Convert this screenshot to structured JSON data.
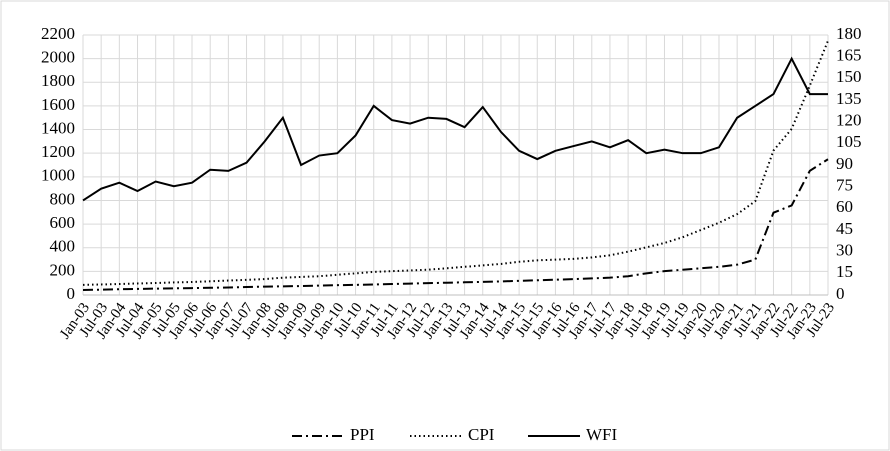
{
  "chart_data": {
    "type": "line",
    "categories": [
      "Jan-03",
      "Jul-03",
      "Jan-04",
      "Jul-04",
      "Jan-05",
      "Jul-05",
      "Jan-06",
      "Jul-06",
      "Jan-07",
      "Jul-07",
      "Jan-08",
      "Jul-08",
      "Jan-09",
      "Jul-09",
      "Jan-10",
      "Jul-10",
      "Jan-11",
      "Jul-11",
      "Jan-12",
      "Jul-12",
      "Jan-13",
      "Jul-13",
      "Jan-14",
      "Jul-14",
      "Jan-15",
      "Jul-15",
      "Jan-16",
      "Jul-16",
      "Jan-17",
      "Jul-17",
      "Jan-18",
      "Jul-18",
      "Jan-19",
      "Jul-19",
      "Jan-20",
      "Jul-20",
      "Jan-21",
      "Jul-21",
      "Jan-22",
      "Jul-22",
      "Jan-23",
      "Jul-23"
    ],
    "series": [
      {
        "name": "PPI",
        "color": "#000000",
        "dash": "dashdot",
        "axis": "y2",
        "values": [
          3.5,
          3.7,
          4,
          4.2,
          4.4,
          4.6,
          4.8,
          5,
          5.2,
          5.5,
          5.8,
          6,
          6.2,
          6.5,
          6.8,
          7,
          7.3,
          7.6,
          7.9,
          8.2,
          8.5,
          8.8,
          9.1,
          9.4,
          9.8,
          10.2,
          10.6,
          11,
          11.5,
          12,
          13,
          15,
          16.5,
          17.5,
          18.5,
          19.5,
          21,
          24.5,
          57,
          62,
          86,
          94
        ]
      },
      {
        "name": "CPI",
        "color": "#000000",
        "dash": "dotted",
        "axis": "y2",
        "values": [
          7,
          7.3,
          7.6,
          8,
          8.3,
          8.7,
          9,
          9.5,
          10,
          10.5,
          11,
          12,
          12.5,
          13,
          14,
          15,
          16,
          16.5,
          17,
          17.5,
          18.5,
          19.5,
          20.5,
          21.5,
          23,
          24,
          24.5,
          25,
          26,
          27.5,
          30,
          33,
          36,
          40,
          45,
          50,
          56,
          65,
          100,
          115,
          145,
          176
        ]
      },
      {
        "name": "WFI",
        "color": "#000000",
        "dash": "solid",
        "axis": "y",
        "values": [
          800,
          900,
          950,
          880,
          960,
          920,
          950,
          1060,
          1050,
          1120,
          1300,
          1500,
          1100,
          1180,
          1200,
          1350,
          1600,
          1480,
          1450,
          1500,
          1490,
          1420,
          1590,
          1380,
          1220,
          1150,
          1220,
          1260,
          1300,
          1250,
          1310,
          1200,
          1230,
          1200,
          1200,
          1250,
          1500,
          1600,
          1700,
          2000,
          1700,
          1700
        ]
      }
    ],
    "ylim": [
      0,
      2200
    ],
    "yticks": [
      0,
      200,
      400,
      600,
      800,
      1000,
      1200,
      1400,
      1600,
      1800,
      2000,
      2200
    ],
    "y2lim": [
      0,
      180
    ],
    "y2ticks": [
      0,
      15,
      30,
      45,
      60,
      75,
      90,
      105,
      120,
      135,
      150,
      165,
      180
    ],
    "grid": true,
    "legend": "bottom"
  }
}
